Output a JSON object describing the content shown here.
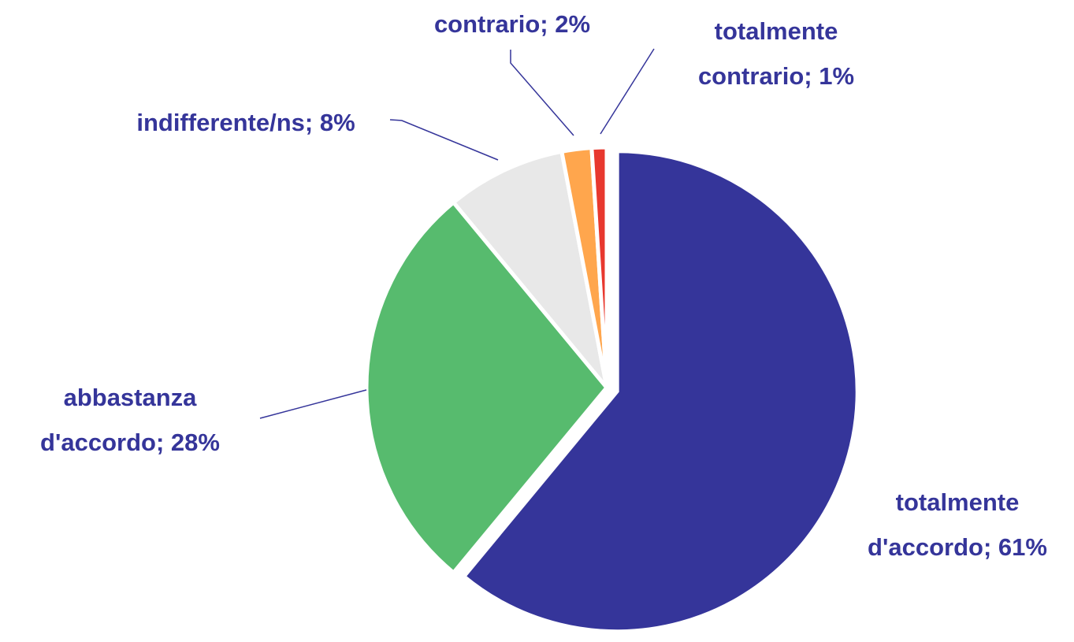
{
  "chart_data": {
    "type": "pie",
    "values": [
      61,
      28,
      8,
      2,
      1
    ],
    "value_labels": [
      [
        "totalmente",
        "d'accordo; 61%"
      ],
      [
        "abbastanza",
        "d'accordo; 28%"
      ],
      [
        "indifferente/ns; 8%"
      ],
      [
        "contrario; 2%"
      ],
      [
        "totalmente",
        "contrario; 1%"
      ]
    ],
    "colors": [
      "#35359a",
      "#57bb6e",
      "#e8e8e8",
      "#ffa64d",
      "#e8382e"
    ],
    "explode": [
      true,
      false,
      false,
      false,
      false
    ]
  }
}
